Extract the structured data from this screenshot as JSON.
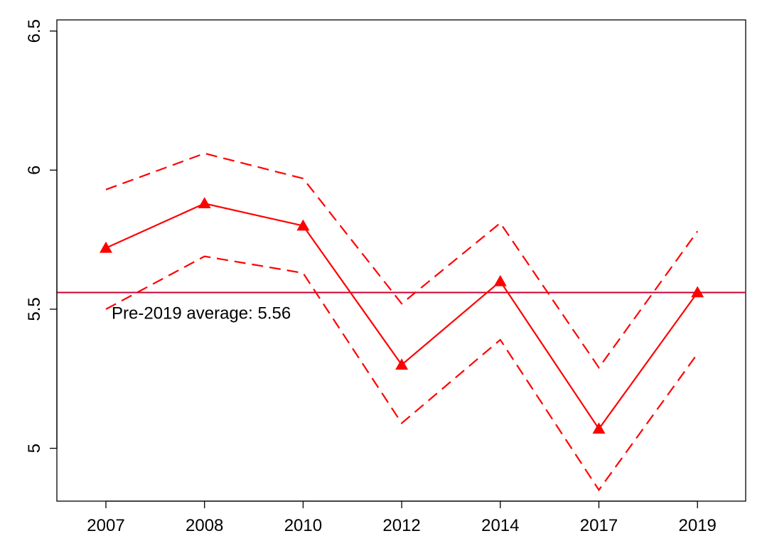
{
  "chart_data": {
    "type": "line",
    "x": [
      "2007",
      "2008",
      "2010",
      "2012",
      "2014",
      "2017",
      "2019"
    ],
    "series": [
      {
        "role": "estimate",
        "values": [
          5.72,
          5.88,
          5.8,
          5.3,
          5.6,
          5.07,
          5.56
        ],
        "color": "#ff0000",
        "marker": "triangle",
        "linestyle": "solid"
      },
      {
        "role": "upper-ci",
        "values": [
          5.93,
          6.06,
          5.97,
          5.52,
          5.81,
          5.29,
          5.78
        ],
        "color": "#ff0000",
        "linestyle": "dashed"
      },
      {
        "role": "lower-ci",
        "values": [
          5.5,
          5.69,
          5.63,
          5.09,
          5.39,
          4.85,
          5.34
        ],
        "color": "#ff0000",
        "linestyle": "dashed"
      }
    ],
    "reference_line": {
      "y": 5.56,
      "label": "Pre-2019 average: 5.56",
      "color": "#cc0033"
    },
    "ylim": [
      4.81,
      6.54
    ],
    "yticks": [
      5,
      5.5,
      6,
      6.5
    ],
    "ytick_labels": [
      "5",
      "5.5",
      "6",
      "6.5"
    ],
    "title": "",
    "xlabel": "",
    "ylabel": "",
    "grid": false,
    "legend": "none"
  }
}
